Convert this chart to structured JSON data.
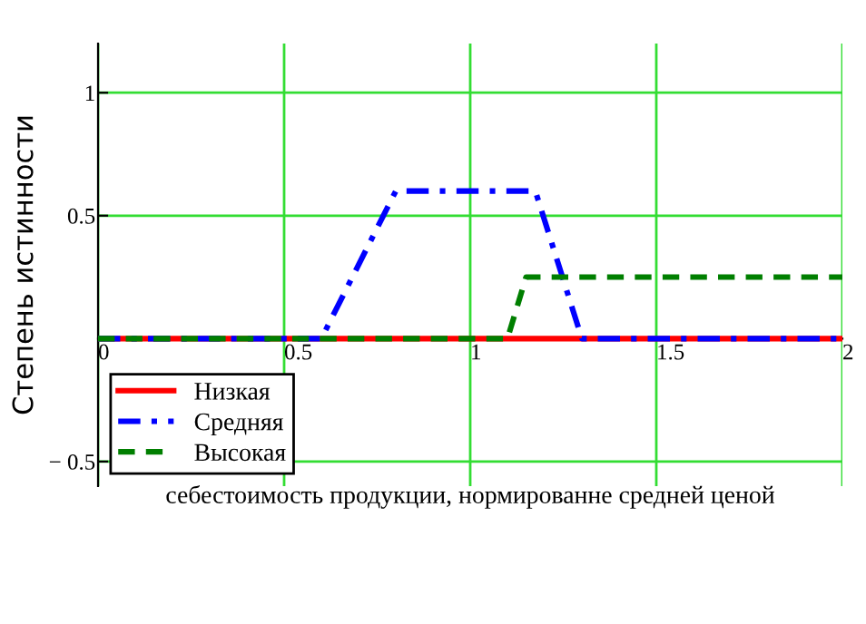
{
  "chart_data": {
    "type": "line",
    "xlabel": "себестоимость продукции, нормированне средней ценой",
    "ylabel": "Степень истинности",
    "xlim": [
      0,
      2
    ],
    "ylim": [
      -0.6,
      1.2
    ],
    "xticks": [
      0,
      0.5,
      1,
      1.5,
      2
    ],
    "yticks": [
      {
        "value": -0.5,
        "label": "− 0.5"
      },
      {
        "value": 0,
        "label": null
      },
      0.5,
      1
    ],
    "grid": true,
    "legend": "bottom left",
    "series": [
      {
        "name": "Низкая",
        "color": "#ff0000",
        "line_style": "solid",
        "x": [
          0,
          2
        ],
        "values": [
          0,
          0
        ]
      },
      {
        "name": "Средняя",
        "color": "#0000ff",
        "line_style": "dashdot",
        "x": [
          0,
          0.6,
          0.8,
          1.175,
          1.3,
          2
        ],
        "values": [
          0,
          0,
          0.6,
          0.6,
          0,
          0
        ]
      },
      {
        "name": "Высокая",
        "color": "#007f00",
        "line_style": "dashed",
        "x": [
          0,
          1.1,
          1.15,
          2
        ],
        "values": [
          0,
          0,
          0.25,
          0.25
        ]
      }
    ]
  }
}
